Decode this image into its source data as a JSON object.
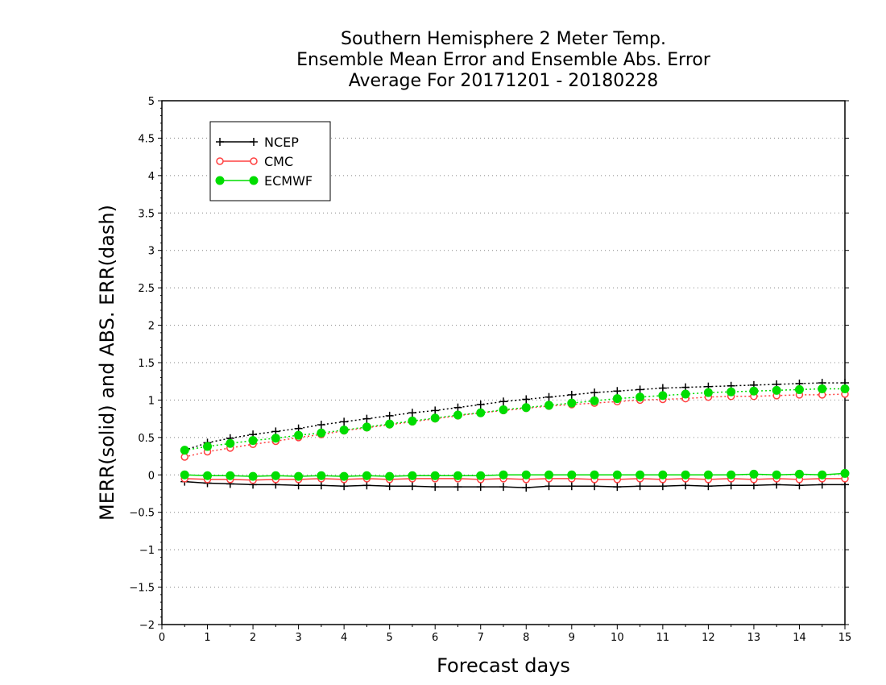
{
  "chart_data": {
    "type": "line",
    "title": [
      "Southern Hemisphere 2 Meter Temp.",
      "Ensemble Mean Error and Ensemble Abs. Error",
      "Average For 20171201 - 20180228"
    ],
    "xlabel": "Forecast days",
    "ylabel": "MERR(solid) and ABS. ERR(dash)",
    "xlim": [
      0,
      15
    ],
    "ylim": [
      -2,
      5
    ],
    "xticks": [
      "0",
      "1",
      "2",
      "3",
      "4",
      "5",
      "6",
      "7",
      "8",
      "9",
      "10",
      "11",
      "12",
      "13",
      "14",
      "15"
    ],
    "yticks": [
      "5",
      "4.5",
      "4",
      "3.5",
      "3",
      "2.5",
      "2",
      "1.5",
      "1",
      "0.5",
      "0",
      "−0.5",
      "−1",
      "−1.5",
      "−2"
    ],
    "ytick_values": [
      5,
      4.5,
      4,
      3.5,
      3,
      2.5,
      2,
      1.5,
      1,
      0.5,
      0,
      -0.5,
      -1,
      -1.5,
      -2
    ],
    "grid": "horizontal dotted",
    "legend_placement": "top-left",
    "x": [
      0.5,
      1,
      1.5,
      2,
      2.5,
      3,
      3.5,
      4,
      4.5,
      5,
      5.5,
      6,
      6.5,
      7,
      7.5,
      8,
      8.5,
      9,
      9.5,
      10,
      10.5,
      11,
      11.5,
      12,
      12.5,
      13,
      13.5,
      14,
      14.5,
      15
    ],
    "series": [
      {
        "name": "NCEP",
        "color": "#000000",
        "marker": "plus",
        "merr": [
          -0.09,
          -0.11,
          -0.12,
          -0.13,
          -0.13,
          -0.14,
          -0.14,
          -0.15,
          -0.14,
          -0.15,
          -0.15,
          -0.16,
          -0.16,
          -0.16,
          -0.16,
          -0.17,
          -0.15,
          -0.15,
          -0.15,
          -0.16,
          -0.15,
          -0.15,
          -0.14,
          -0.15,
          -0.14,
          -0.14,
          -0.13,
          -0.14,
          -0.13,
          -0.13
        ],
        "abs_err": [
          0.33,
          0.43,
          0.49,
          0.54,
          0.58,
          0.62,
          0.67,
          0.71,
          0.75,
          0.79,
          0.83,
          0.86,
          0.9,
          0.94,
          0.98,
          1.01,
          1.04,
          1.07,
          1.1,
          1.12,
          1.14,
          1.16,
          1.17,
          1.18,
          1.19,
          1.2,
          1.21,
          1.22,
          1.23,
          1.23
        ]
      },
      {
        "name": "CMC",
        "color": "#ff4040",
        "marker": "open-circle",
        "merr": [
          -0.05,
          -0.06,
          -0.06,
          -0.07,
          -0.06,
          -0.06,
          -0.05,
          -0.06,
          -0.05,
          -0.06,
          -0.05,
          -0.05,
          -0.05,
          -0.06,
          -0.05,
          -0.06,
          -0.05,
          -0.05,
          -0.06,
          -0.06,
          -0.05,
          -0.06,
          -0.05,
          -0.06,
          -0.05,
          -0.06,
          -0.05,
          -0.06,
          -0.05,
          -0.05
        ],
        "abs_err": [
          0.24,
          0.31,
          0.36,
          0.41,
          0.45,
          0.5,
          0.54,
          0.59,
          0.63,
          0.67,
          0.71,
          0.75,
          0.79,
          0.83,
          0.86,
          0.89,
          0.92,
          0.94,
          0.96,
          0.98,
          1.0,
          1.01,
          1.02,
          1.04,
          1.05,
          1.05,
          1.06,
          1.07,
          1.07,
          1.08
        ]
      },
      {
        "name": "ECMWF",
        "color": "#00dd00",
        "marker": "filled-circle",
        "merr": [
          0.0,
          -0.01,
          -0.01,
          -0.02,
          -0.01,
          -0.02,
          -0.01,
          -0.02,
          -0.01,
          -0.02,
          -0.01,
          -0.01,
          -0.01,
          -0.01,
          0.0,
          0.0,
          0.0,
          0.0,
          0.0,
          0.0,
          0.0,
          0.0,
          0.0,
          0.0,
          0.0,
          0.01,
          0.0,
          0.01,
          0.0,
          0.02
        ],
        "abs_err": [
          0.33,
          0.38,
          0.42,
          0.46,
          0.49,
          0.53,
          0.56,
          0.6,
          0.64,
          0.68,
          0.72,
          0.76,
          0.8,
          0.83,
          0.87,
          0.9,
          0.93,
          0.96,
          0.99,
          1.02,
          1.04,
          1.06,
          1.08,
          1.1,
          1.11,
          1.12,
          1.13,
          1.14,
          1.15,
          1.15
        ]
      }
    ]
  }
}
